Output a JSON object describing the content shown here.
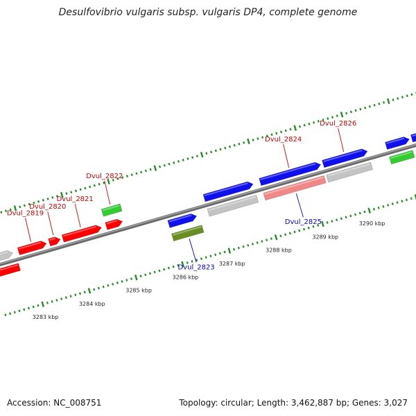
{
  "title": "Desulfovibrio vulgaris subsp. vulgaris DP4, complete genome",
  "footer": {
    "accession": "Accession: NC_008751",
    "summary": "Topology: circular; Length: 3,462,887 bp; Genes: 3,027"
  },
  "colors": {
    "cds": "#ff0000",
    "cds_blue": "#1010ee",
    "unlabeled_gray": "#c4c4c4",
    "pseudo_pink": "#f08888",
    "rna_green": "#33cc33",
    "rna_olive": "#6b8e23",
    "tick_green": "#228b22",
    "backbone": "#808080"
  },
  "scale": {
    "start_kbp": 3282.2,
    "end_kbp": 3291.5
  },
  "kbp_labels": [
    "3283 kbp",
    "3284 kbp",
    "3285 kbp",
    "3286 kbp",
    "3287 kbp",
    "3288 kbp",
    "3289 kbp",
    "3290 kbp"
  ],
  "features": [
    {
      "strand": "+",
      "start_kbp": 3282.2,
      "end_kbp": 3282.7,
      "color": "unlabeled_gray",
      "dir": 1,
      "lane": 1
    },
    {
      "strand": "-",
      "start_kbp": 3282.2,
      "end_kbp": 3282.75,
      "color": "cds",
      "dir": -1,
      "lane": 1
    },
    {
      "strand": "+",
      "start_kbp": 3282.82,
      "end_kbp": 3283.42,
      "color": "cds",
      "dir": 1,
      "lane": 1,
      "label": "Dvul_2819"
    },
    {
      "strand": "+",
      "start_kbp": 3283.48,
      "end_kbp": 3283.72,
      "color": "cds",
      "dir": 1,
      "lane": 1,
      "label": "Dvul_2820"
    },
    {
      "strand": "+",
      "start_kbp": 3283.77,
      "end_kbp": 3284.6,
      "color": "cds",
      "dir": 1,
      "lane": 1,
      "label": "Dvul_2821"
    },
    {
      "strand": "+",
      "start_kbp": 3284.7,
      "end_kbp": 3285.05,
      "color": "cds",
      "dir": 1,
      "lane": 1
    },
    {
      "strand": "+",
      "start_kbp": 3284.7,
      "end_kbp": 3285.1,
      "color": "rna_green",
      "dir": 0,
      "lane": 2,
      "label": "Dvul_2822"
    },
    {
      "strand": "-",
      "start_kbp": 3285.95,
      "end_kbp": 3286.55,
      "color": "cds_blue",
      "dir": 1,
      "lane": 1
    },
    {
      "strand": "-",
      "start_kbp": 3285.95,
      "end_kbp": 3286.6,
      "color": "rna_olive",
      "dir": 0,
      "lane": 2,
      "label": "Dvul_2823"
    },
    {
      "strand": "+",
      "start_kbp": 3286.8,
      "end_kbp": 3287.85,
      "color": "cds_blue",
      "dir": 1,
      "lane": 1
    },
    {
      "strand": "-",
      "start_kbp": 3286.8,
      "end_kbp": 3287.85,
      "color": "unlabeled_gray",
      "dir": 0,
      "lane": 1
    },
    {
      "strand": "+",
      "start_kbp": 3288.0,
      "end_kbp": 3289.3,
      "color": "cds_blue",
      "dir": 1,
      "lane": 1,
      "label": "Dvul_2824"
    },
    {
      "strand": "-",
      "start_kbp": 3288.0,
      "end_kbp": 3289.3,
      "color": "pseudo_pink",
      "dir": 0,
      "lane": 1,
      "label": "Dvul_2825"
    },
    {
      "strand": "+",
      "start_kbp": 3289.35,
      "end_kbp": 3290.3,
      "color": "cds_blue",
      "dir": 1,
      "lane": 1,
      "label": "Dvul_2826"
    },
    {
      "strand": "-",
      "start_kbp": 3289.35,
      "end_kbp": 3290.3,
      "color": "unlabeled_gray",
      "dir": 0,
      "lane": 1
    },
    {
      "strand": "+",
      "start_kbp": 3290.7,
      "end_kbp": 3291.2,
      "color": "cds_blue",
      "dir": 1,
      "lane": 1
    },
    {
      "strand": "-",
      "start_kbp": 3290.7,
      "end_kbp": 3291.2,
      "color": "rna_green",
      "dir": 0,
      "lane": 1
    },
    {
      "strand": "+",
      "start_kbp": 3291.25,
      "end_kbp": 3291.8,
      "color": "cds_blue",
      "dir": 1,
      "lane": 1
    }
  ]
}
